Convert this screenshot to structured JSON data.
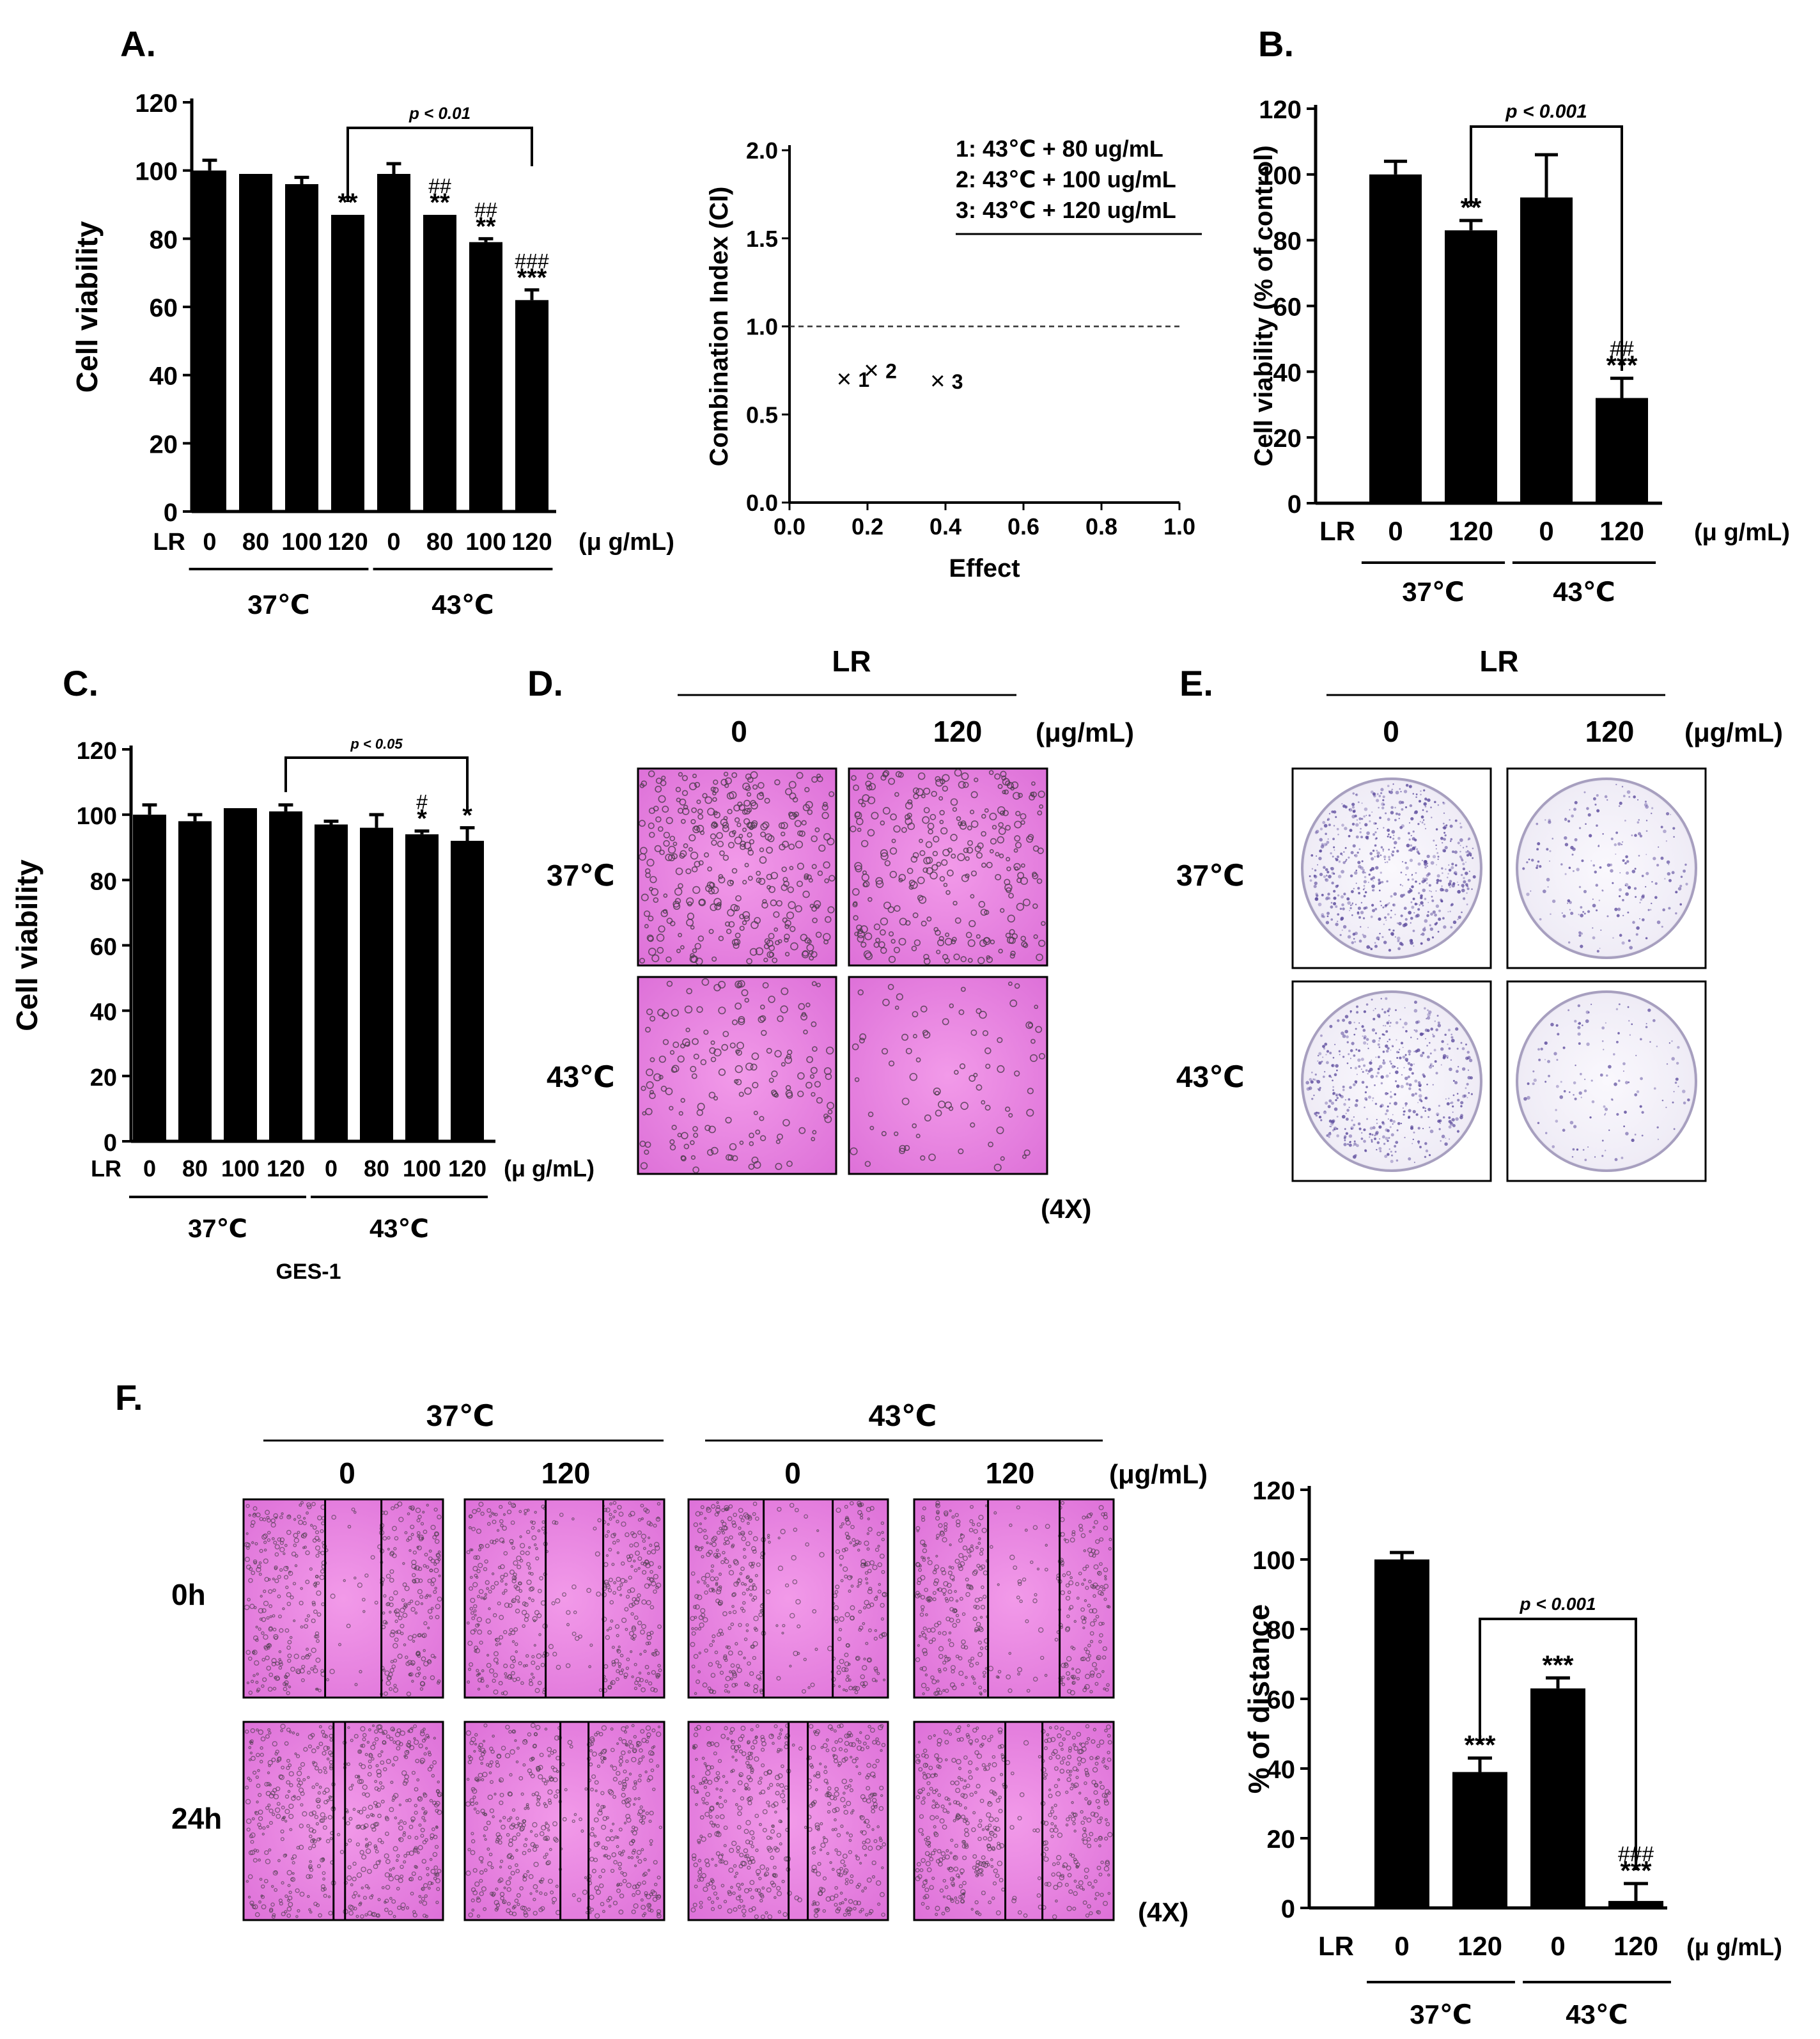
{
  "colors": {
    "bar": "#000000",
    "axis": "#000000",
    "he_stain": "#e88ae0",
    "he_stain_dark": "#d65cd2",
    "cell_dot": "#4a3a4a",
    "plate_bg": "#f6f4fa",
    "colony": "#5b4a9c"
  },
  "chart_data": [
    {
      "id": "A1",
      "panel_label": "A.",
      "type": "bar",
      "title": "",
      "ylabel": "Cell viability",
      "xlabel": "",
      "ylim": [
        0,
        120
      ],
      "yticks": [
        "0",
        "20",
        "40",
        "60",
        "80",
        "100",
        "120"
      ],
      "row_prefix": "LR",
      "unit": "(μ g/mL)",
      "categories": [
        "0",
        "80",
        "100",
        "120",
        "0",
        "80",
        "100",
        "120"
      ],
      "values": [
        100,
        99,
        96,
        87,
        99,
        87,
        79,
        62
      ],
      "errors": [
        3,
        0,
        2,
        0,
        3,
        0,
        1,
        3
      ],
      "marks_top": [
        "",
        "",
        "",
        "**",
        "",
        "##",
        "##",
        "###"
      ],
      "marks_bottom": [
        "",
        "",
        "",
        "",
        "",
        "**",
        "**",
        "***"
      ],
      "groups": [
        {
          "label": "37℃",
          "from": 0,
          "to": 3
        },
        {
          "label": "43℃",
          "from": 4,
          "to": 7
        }
      ],
      "bracket": {
        "from": 3,
        "to": 7,
        "label": "p < 0.01"
      }
    },
    {
      "id": "A2",
      "type": "scatter",
      "title": "",
      "xlabel": "Effect",
      "ylabel": "Combination Index (CI)",
      "xlim": [
        0,
        1
      ],
      "ylim": [
        0,
        2
      ],
      "xticks": [
        "0.0",
        "0.2",
        "0.4",
        "0.6",
        "0.8",
        "1.0"
      ],
      "yticks": [
        "0.0",
        "0.5",
        "1.0",
        "1.5",
        "2.0"
      ],
      "reference_line_y": 1.0,
      "points": [
        {
          "x": 0.14,
          "y": 0.7,
          "label": "1"
        },
        {
          "x": 0.21,
          "y": 0.75,
          "label": "2"
        },
        {
          "x": 0.38,
          "y": 0.69,
          "label": "3"
        }
      ],
      "legend": [
        "1: 43℃ + 80 ug/mL",
        "2: 43℃ + 100 ug/mL",
        "3: 43℃ + 120 ug/mL"
      ]
    },
    {
      "id": "B",
      "panel_label": "B.",
      "type": "bar",
      "title": "",
      "ylabel": "Cell viability (% of control)",
      "xlabel": "",
      "ylim": [
        0,
        120
      ],
      "yticks": [
        "0",
        "20",
        "40",
        "60",
        "80",
        "100",
        "120"
      ],
      "row_prefix": "LR",
      "unit": "(μ g/mL)",
      "categories": [
        "0",
        "120",
        "0",
        "120"
      ],
      "values": [
        100,
        83,
        93,
        32
      ],
      "errors": [
        4,
        3,
        13,
        6
      ],
      "marks_top": [
        "",
        "**",
        "",
        "##"
      ],
      "marks_bottom": [
        "",
        "",
        "",
        "***"
      ],
      "groups": [
        {
          "label": "37℃",
          "from": 0,
          "to": 1
        },
        {
          "label": "43℃",
          "from": 2,
          "to": 3
        }
      ],
      "bracket": {
        "from": 1,
        "to": 3,
        "label": "p < 0.001"
      }
    },
    {
      "id": "C",
      "panel_label": "C.",
      "type": "bar",
      "title": "",
      "ylabel": "Cell viability",
      "xlabel": "GES-1",
      "ylim": [
        0,
        120
      ],
      "yticks": [
        "0",
        "20",
        "40",
        "60",
        "80",
        "100",
        "120"
      ],
      "row_prefix": "LR",
      "unit": "(μ g/mL)",
      "categories": [
        "0",
        "80",
        "100",
        "120",
        "0",
        "80",
        "100",
        "120"
      ],
      "values": [
        100,
        98,
        102,
        101,
        97,
        96,
        94,
        92
      ],
      "errors": [
        3,
        2,
        0,
        2,
        1,
        4,
        1,
        4
      ],
      "marks_top": [
        "",
        "",
        "",
        "",
        "",
        "",
        "#",
        "*"
      ],
      "marks_bottom": [
        "",
        "",
        "",
        "",
        "",
        "",
        "*",
        ""
      ],
      "groups": [
        {
          "label": "37℃",
          "from": 0,
          "to": 3
        },
        {
          "label": "43℃",
          "from": 4,
          "to": 7
        }
      ],
      "bracket": {
        "from": 3,
        "to": 7,
        "label": "p < 0.05"
      }
    },
    {
      "id": "F",
      "type": "bar",
      "title": "",
      "ylabel": "% of distance",
      "xlabel": "",
      "ylim": [
        0,
        120
      ],
      "yticks": [
        "0",
        "20",
        "40",
        "60",
        "80",
        "100",
        "120"
      ],
      "row_prefix": "LR",
      "unit": "(μ g/mL)",
      "categories": [
        "0",
        "120",
        "0",
        "120"
      ],
      "values": [
        100,
        39,
        63,
        2
      ],
      "errors": [
        2,
        4,
        3,
        5
      ],
      "marks_top": [
        "",
        "",
        "",
        "###"
      ],
      "marks_bottom": [
        "",
        "***",
        "***",
        "***"
      ],
      "groups": [
        {
          "label": "37℃",
          "from": 0,
          "to": 1
        },
        {
          "label": "43℃",
          "from": 2,
          "to": 3
        }
      ],
      "bracket": {
        "from": 1,
        "to": 3,
        "label": "p < 0.001"
      }
    }
  ],
  "panel_d": {
    "label": "D.",
    "header": "LR",
    "columns": [
      "0",
      "120"
    ],
    "unit": "(μg/mL)",
    "rows": [
      "37℃",
      "43℃"
    ],
    "magnification": "(4X)",
    "cell_density": [
      [
        0.9,
        0.75
      ],
      [
        0.45,
        0.22
      ]
    ]
  },
  "panel_e": {
    "label": "E.",
    "header": "LR",
    "columns": [
      "0",
      "120"
    ],
    "unit": "(μg/mL)",
    "rows": [
      "37℃",
      "43℃"
    ],
    "colony_density": [
      [
        0.9,
        0.3
      ],
      [
        0.75,
        0.2
      ]
    ]
  },
  "panel_f_images": {
    "label": "F.",
    "groups": [
      "37℃",
      "43℃"
    ],
    "columns": [
      "0",
      "120",
      "0",
      "120"
    ],
    "unit": "(μg/mL)",
    "rows": [
      "0h",
      "24h"
    ],
    "magnification": "(4X)"
  }
}
